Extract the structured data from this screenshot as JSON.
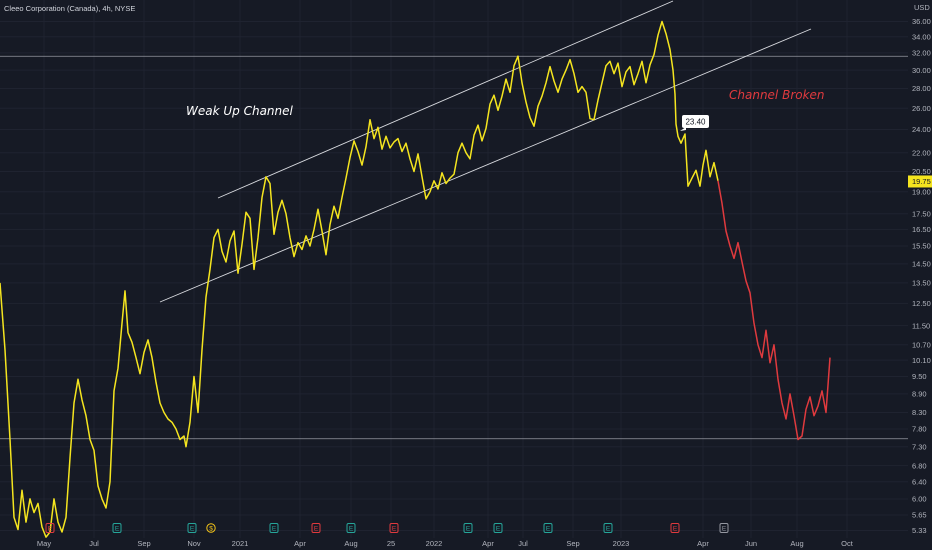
{
  "header": {
    "title": "Cleeo Corporation (Canada), 4h, NYSE"
  },
  "colors": {
    "background": "#161a25",
    "grid": "#1f2330",
    "up_series": "#f5e51f",
    "down_series": "#e03a3e",
    "channel_lines": "#d8dadf",
    "horizontal_levels": "#9598a1",
    "price_badge": "#f5e51f",
    "earnings_badge_green": "#26a69a",
    "earnings_badge_red": "#e03a3e",
    "dividend_badge": "#f5c518",
    "axis_text": "#b2b5be"
  },
  "chart_data": {
    "type": "line",
    "title": "Cleeo Corporation (Canada), 4h, NYSE",
    "ylabel": "USD",
    "y_scale": "log",
    "ylim": [
      5.2,
      37.5
    ],
    "grid": true,
    "y_ticks": [
      "36.00",
      "34.00",
      "32.00",
      "30.00",
      "28.00",
      "26.00",
      "24.00",
      "22.00",
      "20.50",
      "19.00",
      "17.50",
      "16.50",
      "15.50",
      "14.50",
      "13.50",
      "12.50",
      "11.50",
      "10.70",
      "10.10",
      "9.50",
      "8.90",
      "8.30",
      "7.80",
      "7.30",
      "6.80",
      "6.40",
      "6.00",
      "5.65",
      "5.33"
    ],
    "x_ticks": [
      "May",
      "Jul",
      "Sep",
      "Nov",
      "2021",
      "Apr",
      "Aug",
      "25",
      "2022",
      "Apr",
      "Jul",
      "Sep",
      "2023",
      "Apr",
      "Jun",
      "Aug",
      "Oct"
    ],
    "current_price": {
      "value": 19.75,
      "label": "19.75"
    },
    "series": [
      {
        "segment": "up",
        "points": [
          [
            0,
            13.5
          ],
          [
            5,
            10.5
          ],
          [
            10,
            7.5
          ],
          [
            14,
            5.6
          ],
          [
            18,
            5.35
          ],
          [
            22,
            6.2
          ],
          [
            26,
            5.5
          ],
          [
            30,
            6.0
          ],
          [
            34,
            5.7
          ],
          [
            38,
            5.9
          ],
          [
            42,
            5.4
          ],
          [
            46,
            5.2
          ],
          [
            50,
            5.3
          ],
          [
            54,
            6.0
          ],
          [
            58,
            5.5
          ],
          [
            62,
            5.3
          ],
          [
            66,
            5.6
          ],
          [
            70,
            7.0
          ],
          [
            74,
            8.6
          ],
          [
            78,
            9.4
          ],
          [
            82,
            8.7
          ],
          [
            86,
            8.2
          ],
          [
            90,
            7.5
          ],
          [
            94,
            7.2
          ],
          [
            98,
            6.3
          ],
          [
            102,
            6.0
          ],
          [
            106,
            5.8
          ],
          [
            110,
            6.4
          ],
          [
            114,
            9.0
          ],
          [
            118,
            9.8
          ],
          [
            122,
            11.6
          ],
          [
            125,
            13.1
          ],
          [
            128,
            11.2
          ],
          [
            132,
            10.8
          ],
          [
            136,
            10.2
          ],
          [
            140,
            9.6
          ],
          [
            144,
            10.4
          ],
          [
            148,
            10.9
          ],
          [
            152,
            10.2
          ],
          [
            156,
            9.3
          ],
          [
            160,
            8.6
          ],
          [
            164,
            8.3
          ],
          [
            168,
            8.1
          ],
          [
            172,
            8.0
          ],
          [
            176,
            7.8
          ],
          [
            180,
            7.5
          ],
          [
            184,
            7.6
          ],
          [
            186,
            7.3
          ],
          [
            190,
            8.0
          ],
          [
            194,
            9.5
          ],
          [
            198,
            8.3
          ],
          [
            202,
            10.5
          ],
          [
            206,
            12.8
          ],
          [
            210,
            14.2
          ],
          [
            214,
            16.0
          ],
          [
            218,
            16.5
          ],
          [
            222,
            15.2
          ],
          [
            226,
            14.6
          ],
          [
            230,
            15.8
          ],
          [
            234,
            16.4
          ],
          [
            238,
            14.0
          ],
          [
            242,
            15.6
          ],
          [
            246,
            17.6
          ],
          [
            250,
            17.2
          ],
          [
            254,
            14.2
          ],
          [
            258,
            16.0
          ],
          [
            262,
            18.6
          ],
          [
            266,
            20.1
          ],
          [
            270,
            19.6
          ],
          [
            274,
            16.2
          ],
          [
            278,
            17.6
          ],
          [
            282,
            18.4
          ],
          [
            286,
            17.5
          ],
          [
            290,
            16.0
          ],
          [
            294,
            14.9
          ],
          [
            298,
            15.7
          ],
          [
            302,
            15.3
          ],
          [
            306,
            16.1
          ],
          [
            310,
            15.5
          ],
          [
            314,
            16.5
          ],
          [
            318,
            17.8
          ],
          [
            322,
            16.4
          ],
          [
            326,
            15.0
          ],
          [
            330,
            16.8
          ],
          [
            334,
            18.0
          ],
          [
            338,
            17.2
          ],
          [
            342,
            18.6
          ],
          [
            346,
            20.0
          ],
          [
            350,
            21.6
          ],
          [
            354,
            23.0
          ],
          [
            358,
            22.1
          ],
          [
            362,
            21.0
          ],
          [
            366,
            22.5
          ],
          [
            370,
            24.9
          ],
          [
            374,
            23.2
          ],
          [
            378,
            24.2
          ],
          [
            382,
            22.3
          ],
          [
            386,
            23.4
          ],
          [
            390,
            22.4
          ],
          [
            394,
            22.9
          ],
          [
            398,
            23.2
          ],
          [
            402,
            22.1
          ],
          [
            406,
            22.8
          ],
          [
            410,
            21.5
          ],
          [
            414,
            20.5
          ],
          [
            418,
            21.9
          ],
          [
            422,
            20.1
          ],
          [
            426,
            18.5
          ],
          [
            430,
            19.0
          ],
          [
            434,
            19.8
          ],
          [
            438,
            19.2
          ],
          [
            442,
            20.4
          ],
          [
            446,
            19.6
          ],
          [
            450,
            20.0
          ],
          [
            454,
            20.3
          ],
          [
            458,
            22.0
          ],
          [
            462,
            22.8
          ],
          [
            466,
            22.0
          ],
          [
            470,
            21.5
          ],
          [
            474,
            23.5
          ],
          [
            478,
            24.4
          ],
          [
            482,
            23.0
          ],
          [
            486,
            24.1
          ],
          [
            490,
            26.4
          ],
          [
            494,
            27.3
          ],
          [
            498,
            25.8
          ],
          [
            502,
            27.2
          ],
          [
            506,
            29.0
          ],
          [
            510,
            27.6
          ],
          [
            514,
            30.5
          ],
          [
            518,
            31.6
          ],
          [
            522,
            28.6
          ],
          [
            526,
            26.6
          ],
          [
            530,
            25.1
          ],
          [
            534,
            24.3
          ],
          [
            538,
            26.2
          ],
          [
            542,
            27.2
          ],
          [
            546,
            28.6
          ],
          [
            550,
            30.4
          ],
          [
            554,
            28.8
          ],
          [
            558,
            27.6
          ],
          [
            562,
            29.0
          ],
          [
            566,
            30.0
          ],
          [
            570,
            31.2
          ],
          [
            574,
            29.6
          ],
          [
            578,
            27.6
          ],
          [
            582,
            28.2
          ],
          [
            586,
            27.6
          ],
          [
            590,
            25.0
          ],
          [
            594,
            24.9
          ],
          [
            598,
            26.8
          ],
          [
            602,
            28.6
          ],
          [
            606,
            30.5
          ],
          [
            610,
            31.0
          ],
          [
            614,
            29.6
          ],
          [
            618,
            30.8
          ],
          [
            622,
            28.2
          ],
          [
            626,
            29.8
          ],
          [
            630,
            30.4
          ],
          [
            634,
            28.4
          ],
          [
            638,
            29.6
          ],
          [
            642,
            31.0
          ],
          [
            646,
            28.6
          ],
          [
            650,
            30.6
          ],
          [
            654,
            31.8
          ],
          [
            658,
            34.2
          ],
          [
            662,
            36.0
          ],
          [
            666,
            34.4
          ],
          [
            670,
            32.4
          ],
          [
            673,
            30.0
          ],
          [
            675,
            27.4
          ],
          [
            676,
            24.5
          ],
          [
            678,
            23.4
          ],
          [
            681,
            22.8
          ],
          [
            685,
            23.6
          ],
          [
            688,
            19.4
          ],
          [
            692,
            20.0
          ],
          [
            696,
            20.6
          ],
          [
            700,
            19.4
          ],
          [
            703,
            21.0
          ],
          [
            706,
            22.2
          ],
          [
            710,
            20.1
          ],
          [
            714,
            21.2
          ],
          [
            718,
            19.8
          ]
        ]
      },
      {
        "segment": "down",
        "points": [
          [
            718,
            19.8
          ],
          [
            722,
            18.2
          ],
          [
            726,
            16.4
          ],
          [
            730,
            15.5
          ],
          [
            734,
            14.8
          ],
          [
            738,
            15.7
          ],
          [
            742,
            14.6
          ],
          [
            746,
            13.6
          ],
          [
            750,
            13.0
          ],
          [
            754,
            11.6
          ],
          [
            758,
            10.7
          ],
          [
            762,
            10.2
          ],
          [
            766,
            11.3
          ],
          [
            770,
            10.0
          ],
          [
            774,
            10.7
          ],
          [
            778,
            9.4
          ],
          [
            782,
            8.6
          ],
          [
            786,
            8.1
          ],
          [
            790,
            8.9
          ],
          [
            794,
            8.2
          ],
          [
            798,
            7.5
          ],
          [
            802,
            7.6
          ],
          [
            806,
            8.4
          ],
          [
            810,
            8.8
          ],
          [
            814,
            8.2
          ],
          [
            818,
            8.5
          ],
          [
            822,
            9.0
          ],
          [
            826,
            8.3
          ],
          [
            830,
            10.2
          ]
        ]
      }
    ],
    "annotations": [
      {
        "text": "Weak Up Channel",
        "color": "#ffffff"
      },
      {
        "text": "Channel Broken",
        "color": "#e03a3e"
      },
      {
        "text": "23.40",
        "kind": "price-label"
      }
    ],
    "events": [
      {
        "type": "E",
        "color": "red"
      },
      {
        "type": "E",
        "color": "green"
      },
      {
        "type": "E",
        "color": "green"
      },
      {
        "type": "$",
        "color": "gold"
      },
      {
        "type": "E",
        "color": "green"
      },
      {
        "type": "E",
        "color": "red"
      },
      {
        "type": "E",
        "color": "green"
      },
      {
        "type": "E",
        "color": "red"
      },
      {
        "type": "E",
        "color": "green"
      },
      {
        "type": "E",
        "color": "green"
      },
      {
        "type": "E",
        "color": "green"
      },
      {
        "type": "E",
        "color": "green"
      },
      {
        "type": "E",
        "color": "red"
      },
      {
        "type": "E",
        "color": "grey"
      }
    ]
  }
}
